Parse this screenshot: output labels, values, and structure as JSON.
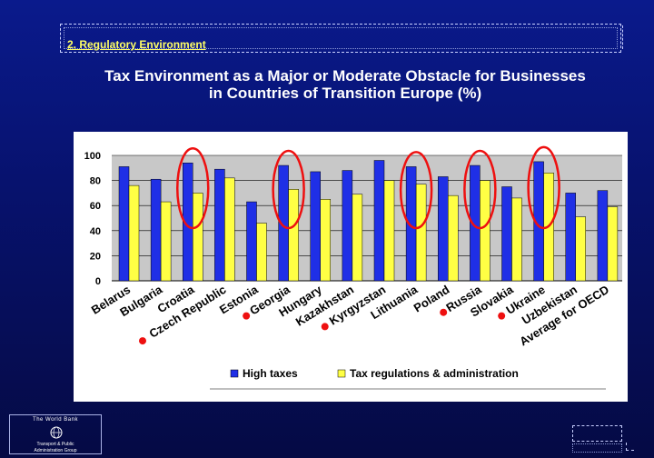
{
  "section": {
    "label": "2. Regulatory Environment"
  },
  "title": {
    "line1": "Tax Environment as a Major or Moderate Obstacle for Businesses",
    "line2": "in Countries of Transition Europe (%)"
  },
  "footer": {
    "org_name": "The World Bank",
    "unit_line1": "Transport & Public",
    "unit_line2": "Administration Group"
  },
  "colors": {
    "high_taxes": "#1f2fe6",
    "tax_regs": "#ffff44",
    "highlight": "#ee1010",
    "marker": "#ee1010"
  },
  "chart_data": {
    "type": "bar",
    "title": "Tax Environment as a Major or Moderate Obstacle for Businesses in Countries of Transition Europe (%)",
    "categories": [
      "Belarus",
      "Bulgaria",
      "Croatia",
      "Czech Republic",
      "Estonia",
      "Georgia",
      "Hungary",
      "Kazakhstan",
      "Kyrgyzstan",
      "Lithuania",
      "Poland",
      "Russia",
      "Slovakia",
      "Ukraine",
      "Uzbekistan",
      "Average for OECD"
    ],
    "series": [
      {
        "name": "High taxes",
        "values": [
          91,
          81,
          94,
          89,
          63,
          92,
          87,
          88,
          96,
          91,
          83,
          92,
          75,
          95,
          70,
          72
        ]
      },
      {
        "name": "Tax regulations & administration",
        "values": [
          76,
          63,
          70,
          82,
          46,
          73,
          65,
          69,
          80,
          77,
          68,
          80,
          66,
          86,
          51,
          59
        ]
      }
    ],
    "xlabel": "",
    "ylabel": "",
    "ylim": [
      0,
      100
    ],
    "yticks": [
      0,
      20,
      40,
      60,
      80,
      100
    ],
    "legend": "bottom",
    "highlighted": [
      "Croatia",
      "Georgia",
      "Lithuania",
      "Russia",
      "Ukraine"
    ],
    "marked": [
      "Czech Republic",
      "Georgia",
      "Kyrgyzstan",
      "Russia",
      "Ukraine"
    ]
  }
}
